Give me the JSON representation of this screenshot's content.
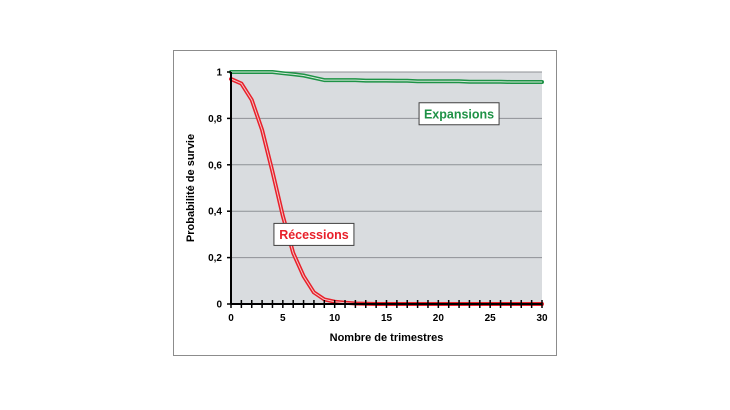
{
  "chart_data": {
    "type": "line",
    "title": "",
    "xlabel": "Nombre de trimestres",
    "ylabel": "Probabilité de survie",
    "xlim": [
      0,
      30
    ],
    "ylim": [
      0,
      1
    ],
    "x_ticks": [
      "0",
      "5",
      "10",
      "15",
      "20",
      "25",
      "30"
    ],
    "y_ticks": [
      "0",
      "0,2",
      "0,4",
      "0,6",
      "0,8",
      "1"
    ],
    "grid": true,
    "background_color": "#d9dcdf",
    "series": [
      {
        "name": "Expansions",
        "color": "#1e9246",
        "x": [
          0,
          1,
          2,
          3,
          4,
          5,
          6,
          7,
          8,
          9,
          10,
          11,
          12,
          13,
          14,
          15,
          16,
          17,
          18,
          19,
          20,
          21,
          22,
          23,
          24,
          25,
          26,
          27,
          28,
          29,
          30
        ],
        "y": [
          1.0,
          1.0,
          1.0,
          1.0,
          1.0,
          0.995,
          0.99,
          0.985,
          0.975,
          0.965,
          0.965,
          0.965,
          0.965,
          0.963,
          0.963,
          0.963,
          0.962,
          0.962,
          0.96,
          0.96,
          0.96,
          0.96,
          0.96,
          0.958,
          0.958,
          0.958,
          0.958,
          0.957,
          0.957,
          0.957,
          0.957
        ]
      },
      {
        "name": "Récessions",
        "color": "#e8202a",
        "x": [
          0,
          1,
          2,
          3,
          4,
          5,
          6,
          7,
          8,
          9,
          10,
          11,
          12,
          13,
          14,
          15,
          16,
          17,
          18,
          19,
          20,
          21,
          22,
          23,
          24,
          25,
          26,
          27,
          28,
          29,
          30
        ],
        "y": [
          0.97,
          0.95,
          0.88,
          0.75,
          0.57,
          0.38,
          0.22,
          0.12,
          0.05,
          0.02,
          0.01,
          0.005,
          0.002,
          0.001,
          0,
          0,
          0,
          0,
          0,
          0,
          0,
          0,
          0,
          0,
          0,
          0,
          0,
          0,
          0,
          0,
          0
        ]
      }
    ],
    "annotations": [
      {
        "text": "Expansions",
        "color": "#1e9246",
        "x": 22,
        "y": 0.82
      },
      {
        "text": "Récessions",
        "color": "#e8202a",
        "x": 8,
        "y": 0.3
      }
    ]
  }
}
